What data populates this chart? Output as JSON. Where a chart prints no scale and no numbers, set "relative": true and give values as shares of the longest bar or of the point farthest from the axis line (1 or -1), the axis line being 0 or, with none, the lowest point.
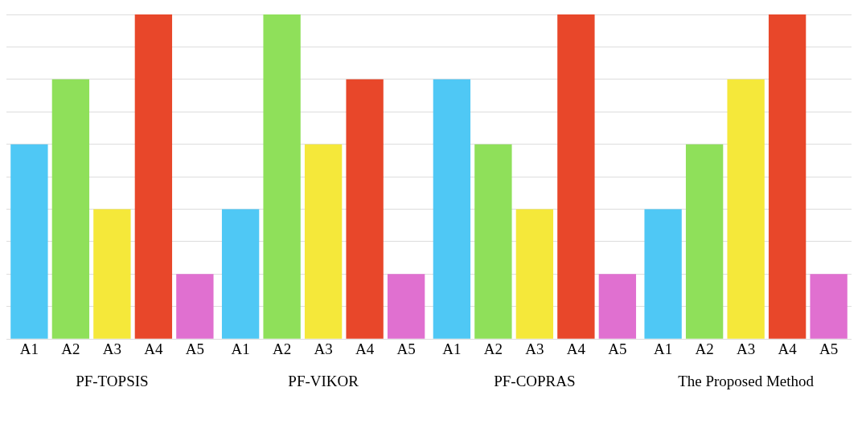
{
  "chart_data": {
    "type": "bar",
    "relative": true,
    "grid": "y",
    "categories": [
      "PF-TOPSIS",
      "PF-VIKOR",
      "PF-COPRAS",
      "The Proposed Method"
    ],
    "series": [
      {
        "name": "A1",
        "color": "#4fc8f5",
        "values": [
          0.6,
          0.4,
          0.8,
          0.4
        ]
      },
      {
        "name": "A2",
        "color": "#8fe05a",
        "values": [
          0.8,
          1,
          0.6,
          0.6
        ]
      },
      {
        "name": "A3",
        "color": "#f5e83a",
        "values": [
          0.4,
          0.6,
          0.4,
          0.8
        ]
      },
      {
        "name": "A4",
        "color": "#e8472a",
        "values": [
          1,
          0.8,
          1,
          1
        ]
      },
      {
        "name": "A5",
        "color": "#e070d0",
        "values": [
          0.2,
          0.2,
          0.2,
          0.2
        ]
      }
    ]
  }
}
